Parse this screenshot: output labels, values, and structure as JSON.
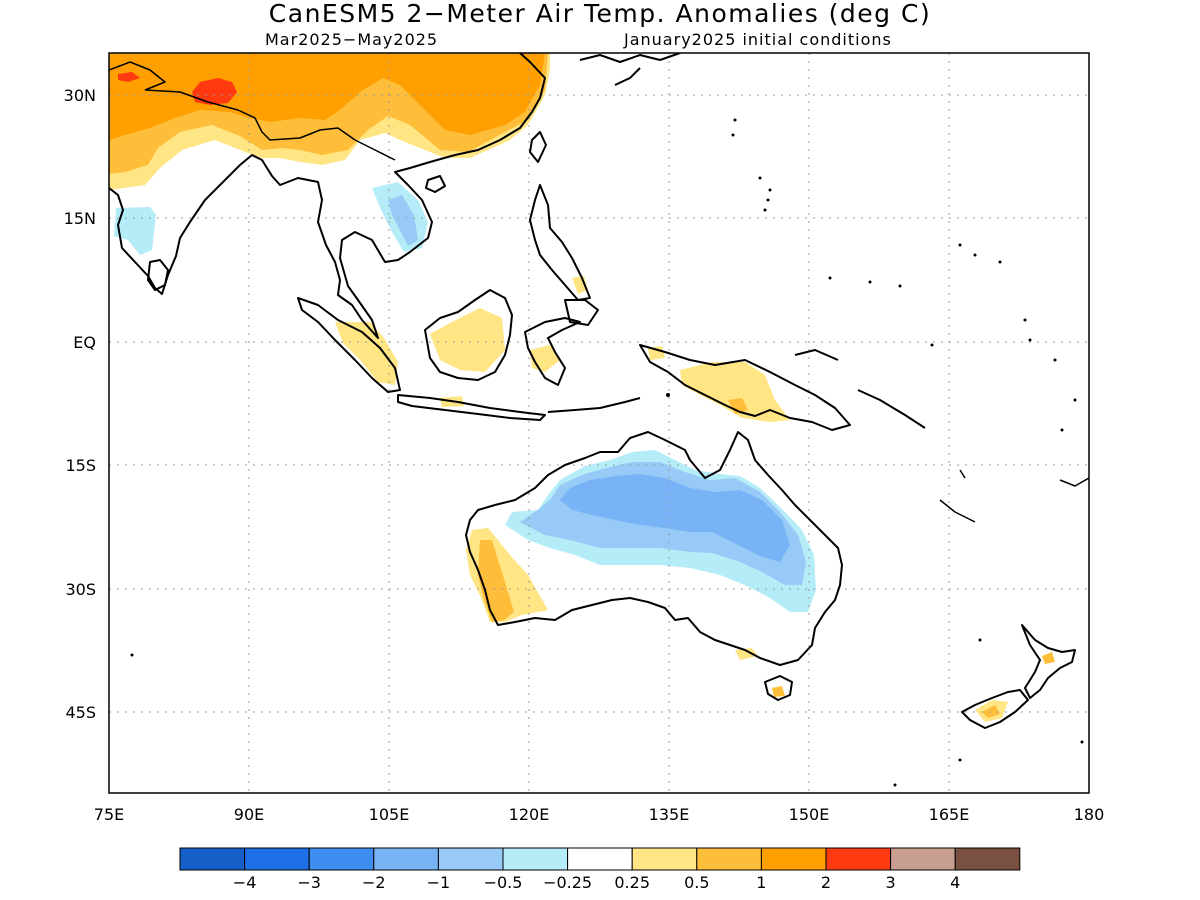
{
  "title": "CanESM5 2−Meter Air Temp. Anomalies (deg C)",
  "subtitle_period": "Mar2025−May2025",
  "subtitle_init": "January2025 initial conditions",
  "axes": {
    "lon_range": [
      75,
      180
    ],
    "lat_range": [
      -55,
      35
    ],
    "x_ticks": [
      "75E",
      "90E",
      "105E",
      "120E",
      "135E",
      "150E",
      "165E",
      "180"
    ],
    "y_ticks": [
      "30N",
      "15N",
      "EQ",
      "15S",
      "30S",
      "45S"
    ],
    "grid": "dotted"
  },
  "colorbar": {
    "colors": [
      "#1560c8",
      "#1f6fe6",
      "#3d8ef0",
      "#78b4f5",
      "#98caf7",
      "#b4ecf8",
      "#ffffff",
      "#ffe584",
      "#ffbe3a",
      "#ff9f00",
      "#ff3a10",
      "#c89e90",
      "#7a5040"
    ],
    "labels": [
      "−4",
      "−3",
      "−2",
      "−1",
      "−0.5",
      "−0.25",
      "0.25",
      "0.5",
      "1",
      "2",
      "3",
      "4"
    ]
  },
  "map": {
    "region": "Indo-Pacific, South/Southeast Asia, Australia, New Zealand",
    "anomaly_fill_colors": {
      "light_yellow": "#ffe584",
      "light_orange": "#ffbe3a",
      "orange": "#ff9f00",
      "red": "#ff3a10",
      "pale_blue": "#b4ecf8",
      "light_blue": "#98caf7",
      "medium_blue": "#78b4f5"
    }
  }
}
